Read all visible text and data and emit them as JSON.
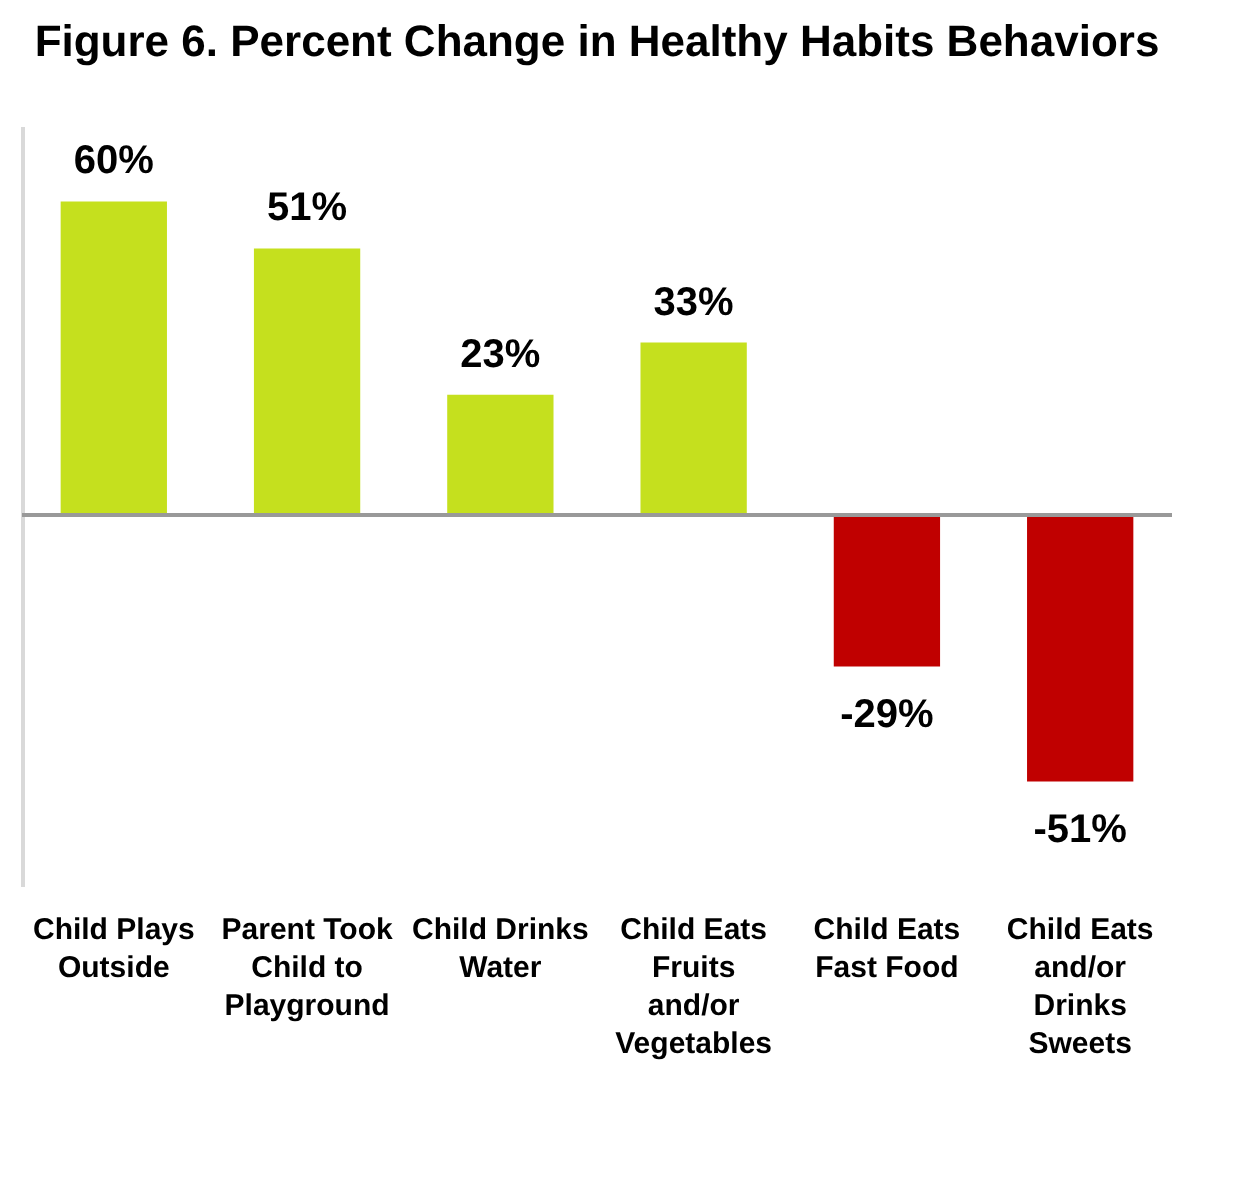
{
  "chart_data": {
    "type": "bar",
    "title": "Figure 6. Percent Change in Healthy Habits Behaviors",
    "categories": [
      "Child Plays Outside",
      "Parent Took Child to Playground",
      "Child Drinks Water",
      "Child Eats Fruits and/or Vegetables",
      "Child Eats Fast Food",
      "Child Eats and/or Drinks Sweets"
    ],
    "values": [
      60,
      51,
      23,
      33,
      -29,
      -51
    ],
    "colors": [
      "#c5e01e",
      "#c5e01e",
      "#c5e01e",
      "#c5e01e",
      "#c00000",
      "#c00000"
    ],
    "value_labels": [
      "60%",
      "51%",
      "23%",
      "33%",
      "-29%",
      "-51%"
    ],
    "grid": false
  }
}
